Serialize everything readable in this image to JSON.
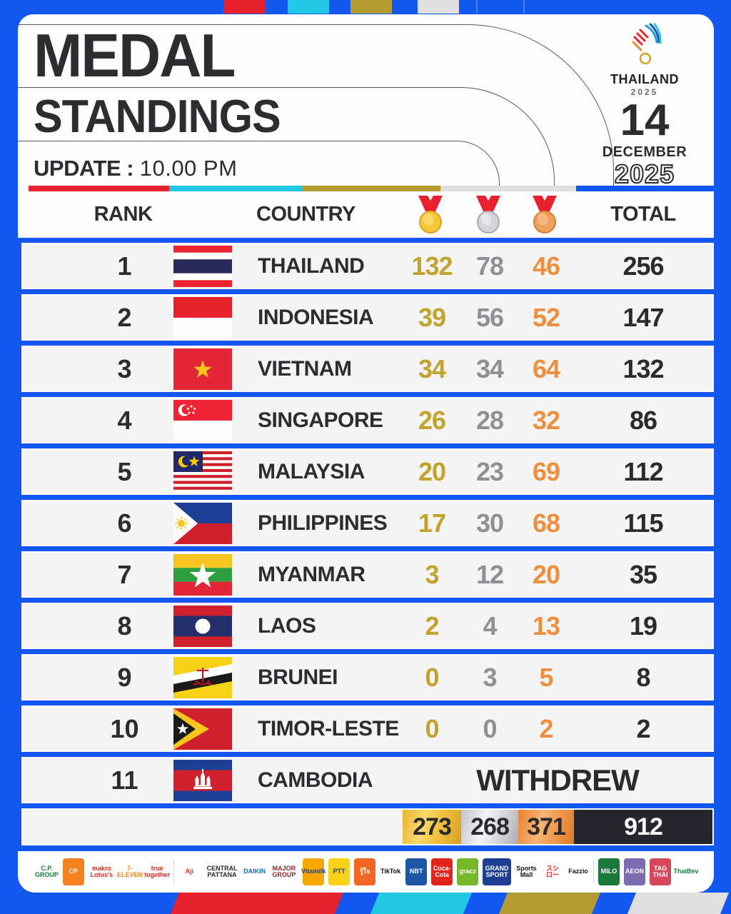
{
  "header": {
    "title_line1": "MEDAL",
    "title_line2": "STANDINGS",
    "update_label": "UPDATE :",
    "update_time": "10.00 PM",
    "event_name": "THAILAND",
    "event_year": "2025",
    "date_day": "14",
    "date_month": "DECEMBER",
    "date_year": "2025"
  },
  "table": {
    "headers": {
      "rank": "RANK",
      "country": "COUNTRY",
      "total": "TOTAL"
    },
    "medal_icons": [
      "gold-medal",
      "silver-medal",
      "bronze-medal"
    ],
    "withdrawn_label": "WITHDREW",
    "rows": [
      {
        "rank": "1",
        "country": "THAILAND",
        "flag": "thailand",
        "gold": "132",
        "silver": "78",
        "bronze": "46",
        "total": "256"
      },
      {
        "rank": "2",
        "country": "INDONESIA",
        "flag": "indonesia",
        "gold": "39",
        "silver": "56",
        "bronze": "52",
        "total": "147"
      },
      {
        "rank": "3",
        "country": "VIETNAM",
        "flag": "vietnam",
        "gold": "34",
        "silver": "34",
        "bronze": "64",
        "total": "132"
      },
      {
        "rank": "4",
        "country": "SINGAPORE",
        "flag": "singapore",
        "gold": "26",
        "silver": "28",
        "bronze": "32",
        "total": "86"
      },
      {
        "rank": "5",
        "country": "MALAYSIA",
        "flag": "malaysia",
        "gold": "20",
        "silver": "23",
        "bronze": "69",
        "total": "112"
      },
      {
        "rank": "6",
        "country": "PHILIPPINES",
        "flag": "philippines",
        "gold": "17",
        "silver": "30",
        "bronze": "68",
        "total": "115"
      },
      {
        "rank": "7",
        "country": "MYANMAR",
        "flag": "myanmar",
        "gold": "3",
        "silver": "12",
        "bronze": "20",
        "total": "35"
      },
      {
        "rank": "8",
        "country": "LAOS",
        "flag": "laos",
        "gold": "2",
        "silver": "4",
        "bronze": "13",
        "total": "19"
      },
      {
        "rank": "9",
        "country": "BRUNEI",
        "flag": "brunei",
        "gold": "0",
        "silver": "3",
        "bronze": "5",
        "total": "8"
      },
      {
        "rank": "10",
        "country": "TIMOR-LESTE",
        "flag": "timor-leste",
        "gold": "0",
        "silver": "0",
        "bronze": "2",
        "total": "2"
      },
      {
        "rank": "11",
        "country": "CAMBODIA",
        "flag": "cambodia",
        "status": "WITHDREW"
      }
    ],
    "totals": {
      "gold": "273",
      "silver": "268",
      "bronze": "371",
      "total": "912"
    }
  },
  "chart_data": {
    "type": "table",
    "title": "MEDAL STANDINGS - THAILAND 2025 (update 10.00 PM, 14 December 2025)",
    "columns": [
      "Rank",
      "Country",
      "Gold",
      "Silver",
      "Bronze",
      "Total"
    ],
    "rows": [
      [
        1,
        "Thailand",
        132,
        78,
        46,
        256
      ],
      [
        2,
        "Indonesia",
        39,
        56,
        52,
        147
      ],
      [
        3,
        "Vietnam",
        34,
        34,
        64,
        132
      ],
      [
        4,
        "Singapore",
        26,
        28,
        32,
        86
      ],
      [
        5,
        "Malaysia",
        20,
        23,
        69,
        112
      ],
      [
        6,
        "Philippines",
        17,
        30,
        68,
        115
      ],
      [
        7,
        "Myanmar",
        3,
        12,
        20,
        35
      ],
      [
        8,
        "Laos",
        2,
        4,
        13,
        19
      ],
      [
        9,
        "Brunei",
        0,
        3,
        5,
        8
      ],
      [
        10,
        "Timor-Leste",
        0,
        0,
        2,
        2
      ],
      [
        11,
        "Cambodia",
        "WITHDREW",
        "WITHDREW",
        "WITHDREW",
        "WITHDREW"
      ]
    ],
    "totals_row": [
      273,
      268,
      371,
      912
    ]
  },
  "colors": {
    "page_blue": "#1157f0",
    "gold_text": "#c2a32b",
    "silver_text": "#8f9094",
    "bronze_text": "#ef8f3e",
    "stripe": [
      "#e8212e",
      "#22c7e5",
      "#b49b30",
      "#dfdfdf",
      "#1157f0"
    ],
    "ribbon_red": "#e8212e",
    "totals_dark": "#27262e"
  },
  "sponsors": [
    {
      "name": "cp-group",
      "label": "C.P. GROUP",
      "bg": "#ffffff",
      "fg": "#1a7a3c"
    },
    {
      "name": "cp",
      "label": "CP",
      "bg": "#f58220",
      "fg": "#ffffff"
    },
    {
      "name": "makro-lotuss",
      "label": "makro Lotus's",
      "bg": "#ffffff",
      "fg": "#e1251b"
    },
    {
      "name": "seven-eleven",
      "label": "7-ELEVEN",
      "bg": "#ffffff",
      "fg": "#f58220"
    },
    {
      "name": "true",
      "label": "true together",
      "bg": "#ffffff",
      "fg": "#e1251b"
    },
    {
      "name": "ajinomoto",
      "label": "Aji",
      "bg": "#ffffff",
      "fg": "#e1251b"
    },
    {
      "name": "central-pattana",
      "label": "CENTRAL PATTANA",
      "bg": "#ffffff",
      "fg": "#2b2b2e"
    },
    {
      "name": "daikin",
      "label": "DAIKIN",
      "bg": "#ffffff",
      "fg": "#0f6cb6"
    },
    {
      "name": "major-group",
      "label": "MAJOR GROUP",
      "bg": "#ffffff",
      "fg": "#8a2a2a"
    },
    {
      "name": "vitamilk",
      "label": "Vitamilk",
      "bg": "#f7a800",
      "fg": "#1c3f94"
    },
    {
      "name": "ptt",
      "label": "PTT",
      "bg": "#f7d117",
      "fg": "#1c3f94"
    },
    {
      "name": "roojai",
      "label": "รู้ใจ",
      "bg": "#f26522",
      "fg": "#ffffff"
    },
    {
      "name": "tiktok",
      "label": "TikTok",
      "bg": "#ffffff",
      "fg": "#111111"
    },
    {
      "name": "nbt",
      "label": "NBT",
      "bg": "#1c56a4",
      "fg": "#ffffff"
    },
    {
      "name": "coca-cola",
      "label": "Coca-Cola",
      "bg": "#e1251b",
      "fg": "#ffffff"
    },
    {
      "name": "grace",
      "label": "gracz",
      "bg": "#76b82a",
      "fg": "#ffffff"
    },
    {
      "name": "grand-sport",
      "label": "GRAND SPORT",
      "bg": "#1c3f94",
      "fg": "#ffffff"
    },
    {
      "name": "sports-mall",
      "label": "Sports Mall",
      "bg": "#ffffff",
      "fg": "#111111"
    },
    {
      "name": "sushiro",
      "label": "スシロー",
      "bg": "#ffffff",
      "fg": "#e1251b"
    },
    {
      "name": "fazzio",
      "label": "Fazzio",
      "bg": "#ffffff",
      "fg": "#111111"
    },
    {
      "name": "milo",
      "label": "MILO",
      "bg": "#1a7a3c",
      "fg": "#ffffff"
    },
    {
      "name": "aeon",
      "label": "AEON",
      "bg": "#7b6bb0",
      "fg": "#ffffff"
    },
    {
      "name": "tag-thai",
      "label": "TAG THAI",
      "bg": "#d6475c",
      "fg": "#ffffff"
    },
    {
      "name": "thaibev",
      "label": "ThaiBev",
      "bg": "#ffffff",
      "fg": "#1a7a3c"
    }
  ]
}
